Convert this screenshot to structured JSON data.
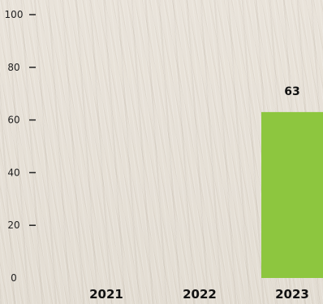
{
  "chart_data": {
    "type": "bar",
    "categories": [
      "2021",
      "2022",
      "2023"
    ],
    "values": [
      null,
      null,
      63
    ],
    "data_labels": [
      "",
      "",
      "63"
    ],
    "title": "",
    "xlabel": "",
    "ylabel": "",
    "ylim": [
      0,
      100
    ],
    "yticks": [
      "0",
      "20",
      "40",
      "60",
      "80",
      "100"
    ],
    "grid": false,
    "legend": "none",
    "bar_color": "#8dc63f"
  }
}
